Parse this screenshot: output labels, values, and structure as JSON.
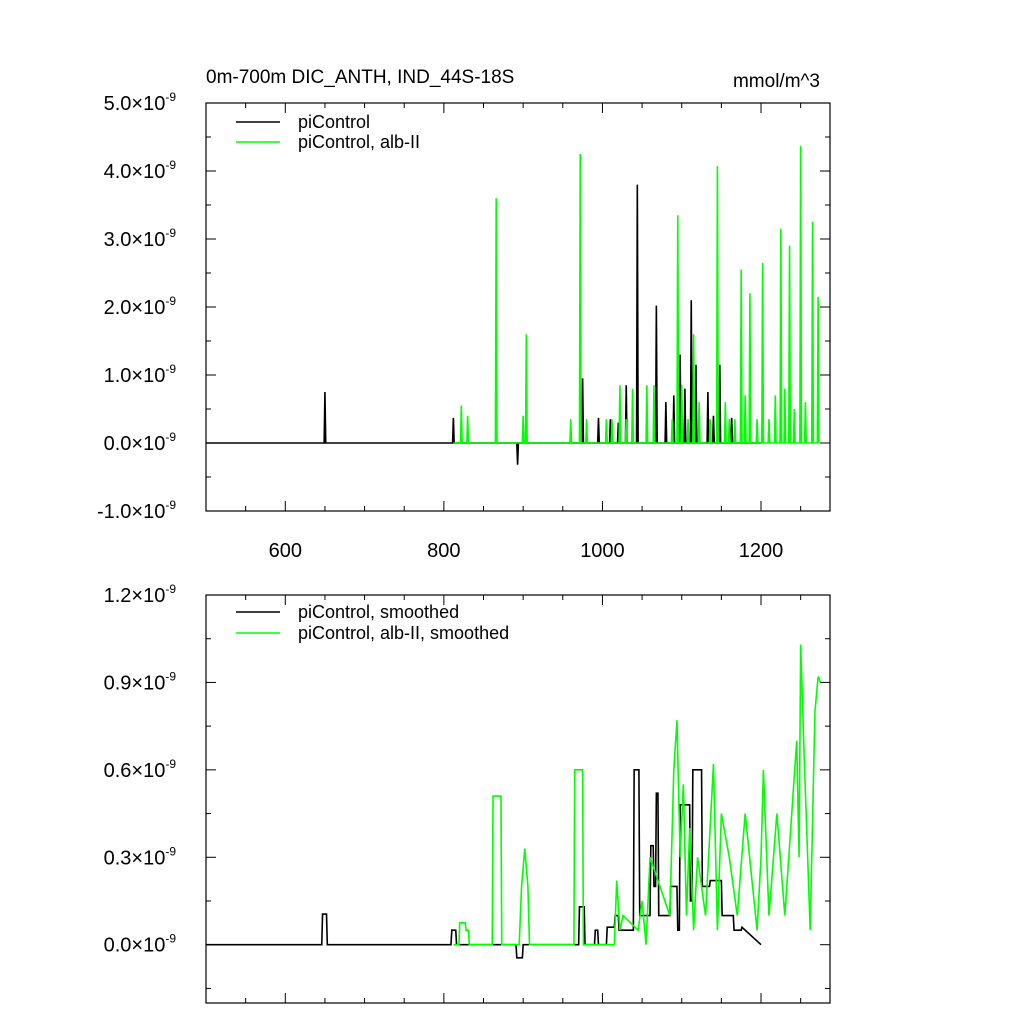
{
  "chart_data": [
    {
      "type": "line",
      "title": "0m-700m DIC_ANTH, IND_44S-18S",
      "units": "mmol/m^3",
      "xlim": [
        500,
        1287
      ],
      "xticks": [
        600,
        800,
        1000,
        1200
      ],
      "xtick_labels": true,
      "ylim": [
        -1e-09,
        5e-09
      ],
      "y_tick_exponent": "-9",
      "yticks": [
        {
          "value": -1e-09,
          "label": "-1.0×10"
        },
        {
          "value": 0,
          "label": "0.0×10"
        },
        {
          "value": 1e-09,
          "label": "1.0×10"
        },
        {
          "value": 2e-09,
          "label": "2.0×10"
        },
        {
          "value": 3e-09,
          "label": "3.0×10"
        },
        {
          "value": 4e-09,
          "label": "4.0×10"
        },
        {
          "value": 5e-09,
          "label": "5.0×10"
        }
      ],
      "series": [
        {
          "name": "piControl",
          "color": "#000000",
          "x": [
            500,
            649,
            650,
            651,
            811,
            812,
            813,
            892,
            893,
            894,
            974,
            975,
            976,
            994,
            995,
            996,
            1009,
            1010,
            1011,
            1019,
            1020,
            1021,
            1029,
            1030,
            1031,
            1043,
            1044,
            1045,
            1067,
            1068,
            1069,
            1079,
            1080,
            1081,
            1089,
            1090,
            1091,
            1097,
            1098,
            1099,
            1103,
            1104,
            1105,
            1111,
            1112,
            1113,
            1117,
            1118,
            1119,
            1132,
            1133,
            1134,
            1139,
            1140,
            1141,
            1147,
            1148,
            1149,
            1162,
            1163,
            1164,
            1200
          ],
          "values": [
            0,
            0,
            7.5e-10,
            0,
            0,
            3.7e-10,
            0,
            0,
            -3.2e-10,
            0,
            0,
            9.5e-10,
            0,
            0,
            3.7e-10,
            0,
            0,
            3.5e-10,
            0,
            0,
            3e-10,
            0,
            0,
            8.5e-10,
            0,
            0,
            3.8e-09,
            0,
            0,
            2.02e-09,
            0,
            0,
            6e-10,
            0,
            0,
            7e-10,
            0,
            0,
            1.3e-09,
            0,
            0,
            8e-10,
            0,
            0,
            2.1e-09,
            0,
            0,
            1.15e-09,
            0,
            0,
            7.5e-10,
            0,
            0,
            4e-10,
            0,
            0,
            1.15e-09,
            0,
            0,
            3.7e-10,
            0,
            0
          ]
        },
        {
          "name": "piControl, alb-II",
          "color": "#00ff00",
          "x": [
            812,
            821,
            822,
            823,
            829,
            830,
            831,
            865,
            866,
            867,
            899,
            900,
            901,
            903,
            904,
            905,
            959,
            960,
            961,
            971,
            972,
            973,
            979,
            980,
            981,
            1004,
            1005,
            1006,
            1011,
            1012,
            1013,
            1021,
            1022,
            1023,
            1029,
            1030,
            1031,
            1037,
            1038,
            1039,
            1055,
            1056,
            1057,
            1064,
            1065,
            1066,
            1087,
            1088,
            1089,
            1094,
            1095,
            1096,
            1099,
            1100,
            1101,
            1107,
            1108,
            1109,
            1114,
            1115,
            1116,
            1121,
            1122,
            1123,
            1135,
            1136,
            1137,
            1144,
            1145,
            1146,
            1154,
            1155,
            1156,
            1159,
            1160,
            1161,
            1166,
            1167,
            1168,
            1174,
            1175,
            1176,
            1179,
            1180,
            1181,
            1185,
            1186,
            1187,
            1194,
            1195,
            1196,
            1201,
            1202,
            1203,
            1209,
            1210,
            1211,
            1217,
            1218,
            1219,
            1224,
            1225,
            1226,
            1229,
            1230,
            1231,
            1235,
            1236,
            1237,
            1241,
            1242,
            1243,
            1249,
            1250,
            1251,
            1255,
            1256,
            1257,
            1264,
            1265,
            1266,
            1271,
            1272,
            1273
          ],
          "values": [
            0,
            0,
            5.5e-10,
            0,
            0,
            4e-10,
            0,
            0,
            3.6e-09,
            0,
            0,
            4e-10,
            0,
            0,
            1.6e-09,
            0,
            0,
            3.5e-10,
            0,
            0,
            4.25e-09,
            0,
            0,
            3.5e-10,
            0,
            0,
            3.5e-10,
            0,
            0,
            3.5e-10,
            0,
            0,
            8.5e-10,
            0,
            0,
            3.5e-10,
            0,
            0,
            8e-10,
            0,
            0,
            8.5e-10,
            0,
            0,
            8.5e-10,
            0,
            0,
            3.5e-10,
            0,
            0,
            3.35e-09,
            0,
            0,
            8.5e-10,
            0,
            0,
            3.5e-10,
            0,
            0,
            1.6e-09,
            0,
            0,
            6e-10,
            0,
            0,
            3.5e-10,
            0,
            0,
            4.07e-09,
            0,
            0,
            6e-10,
            0,
            0,
            3.5e-10,
            0,
            0,
            3.5e-10,
            0,
            0,
            2.55e-09,
            0,
            0,
            7e-10,
            0,
            0,
            2.2e-09,
            0,
            0,
            3.5e-10,
            0,
            0,
            2.65e-09,
            0,
            0,
            3.5e-10,
            0,
            0,
            7e-10,
            0,
            0,
            3.15e-09,
            0,
            0,
            8e-10,
            0,
            0,
            2.9e-09,
            0,
            0,
            5e-10,
            0,
            0,
            4.37e-09,
            0,
            0,
            6e-10,
            0,
            0,
            3.25e-09,
            0,
            0,
            2.15e-09,
            0
          ]
        }
      ]
    },
    {
      "type": "line",
      "xlim": [
        500,
        1287
      ],
      "xticks": [
        600,
        800,
        1000,
        1200
      ],
      "xtick_labels": false,
      "ylim": [
        -2e-10,
        1.2e-09
      ],
      "y_tick_exponent": "-9",
      "yticks": [
        {
          "value": 0,
          "label": "0.0×10"
        },
        {
          "value": 3e-10,
          "label": "0.3×10"
        },
        {
          "value": 6e-10,
          "label": "0.6×10"
        },
        {
          "value": 9e-10,
          "label": "0.9×10"
        },
        {
          "value": 1.2e-09,
          "label": "1.2×10"
        }
      ],
      "series": [
        {
          "name": "piControl, smoothed",
          "color": "#000000",
          "x": [
            500,
            646,
            647,
            652,
            653,
            809,
            810,
            815,
            816,
            891,
            892,
            899,
            900,
            970,
            971,
            977,
            978,
            990,
            991,
            994,
            995,
            1005,
            1006,
            1015,
            1016,
            1020,
            1021,
            1039,
            1040,
            1046,
            1047,
            1060,
            1061,
            1064,
            1065,
            1067,
            1068,
            1070,
            1071,
            1085,
            1086,
            1094,
            1095,
            1097,
            1098,
            1110,
            1111,
            1113,
            1114,
            1125,
            1126,
            1135,
            1136,
            1150,
            1151,
            1165,
            1166,
            1175,
            1176,
            1200
          ],
          "values": [
            0,
            0,
            1.05e-10,
            1.05e-10,
            0,
            0,
            5e-11,
            5e-11,
            0,
            0,
            -4.5e-11,
            -4.5e-11,
            0,
            0,
            1.3e-10,
            1.3e-10,
            0,
            0,
            5e-11,
            5e-11,
            0,
            0,
            6e-11,
            6e-11,
            1e-10,
            1e-10,
            5e-11,
            5e-11,
            6e-10,
            6e-10,
            1e-10,
            1e-10,
            3.4e-10,
            3.4e-10,
            2e-10,
            2e-10,
            5.2e-10,
            5.2e-10,
            1e-10,
            1e-10,
            2e-10,
            2e-10,
            5e-11,
            5e-11,
            4.8e-10,
            4.8e-10,
            1.5e-10,
            1.5e-10,
            6e-10,
            6e-10,
            2e-10,
            2e-10,
            2.2e-10,
            2.2e-10,
            1e-10,
            1e-10,
            5e-11,
            5e-11,
            6e-11,
            0
          ]
        },
        {
          "name": "piControl, alb-II, smoothed",
          "color": "#00ff00",
          "x": [
            812,
            819,
            820,
            827,
            828,
            831,
            832,
            861,
            862,
            872,
            873,
            895,
            898,
            902,
            906,
            908,
            964,
            965,
            975,
            976,
            1015,
            1018,
            1022,
            1026,
            1045,
            1050,
            1055,
            1060,
            1085,
            1090,
            1094,
            1098,
            1102,
            1106,
            1110,
            1115,
            1120,
            1130,
            1140,
            1145,
            1150,
            1160,
            1170,
            1180,
            1195,
            1200,
            1203,
            1210,
            1220,
            1230,
            1240,
            1245,
            1248,
            1250,
            1255,
            1262,
            1268,
            1272,
            1275
          ],
          "values": [
            0,
            0,
            7.5e-11,
            7.5e-11,
            5e-11,
            5e-11,
            0,
            0,
            5.1e-10,
            5.1e-10,
            0,
            0,
            2e-10,
            3.3e-10,
            2e-10,
            0,
            0,
            6e-10,
            6e-10,
            0,
            0,
            2.2e-10,
            5e-11,
            1e-10,
            5e-11,
            1.5e-10,
            0,
            3e-10,
            1e-10,
            6e-10,
            7.7e-10,
            3e-10,
            5.5e-10,
            1e-10,
            4e-10,
            5e-11,
            3e-10,
            1e-10,
            6.2e-10,
            5e-11,
            4.5e-10,
            3e-10,
            1e-10,
            4.5e-10,
            5e-11,
            3e-10,
            6e-10,
            1e-10,
            4.5e-10,
            1e-10,
            5e-10,
            7e-10,
            3e-10,
            1.03e-09,
            6e-10,
            5e-11,
            8e-10,
            9.2e-10,
            9e-10
          ]
        }
      ]
    }
  ]
}
